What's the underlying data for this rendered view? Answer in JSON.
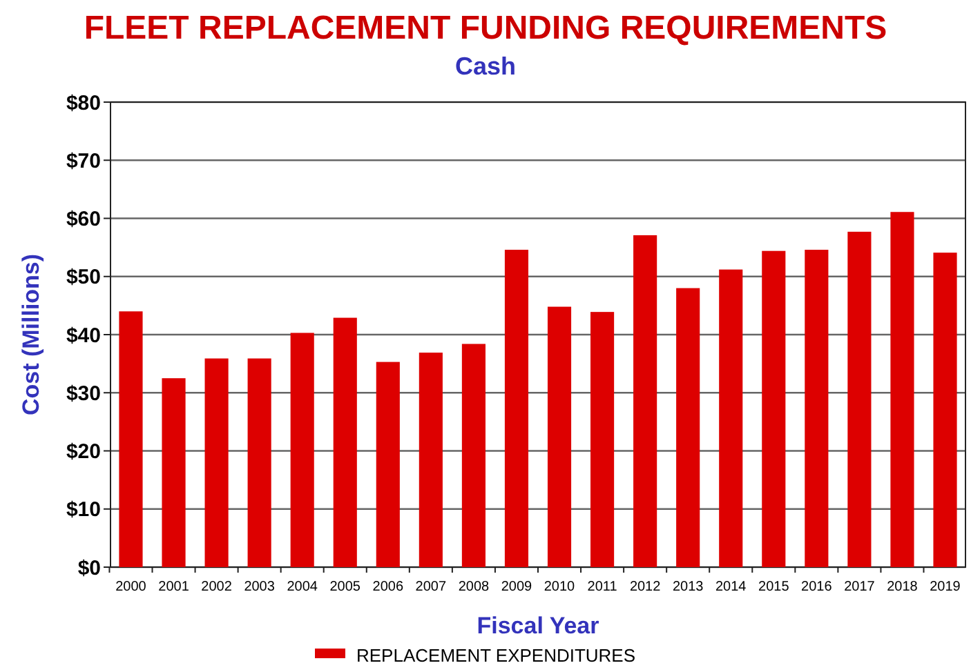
{
  "chart_data": {
    "type": "bar",
    "title": "FLEET REPLACEMENT FUNDING REQUIREMENTS",
    "subtitle": "Cash",
    "xlabel": "Fiscal Year",
    "ylabel": "Cost (Millions)",
    "categories": [
      "2000",
      "2001",
      "2002",
      "2003",
      "2004",
      "2005",
      "2006",
      "2007",
      "2008",
      "2009",
      "2010",
      "2011",
      "2012",
      "2013",
      "2014",
      "2015",
      "2016",
      "2017",
      "2018",
      "2019"
    ],
    "series": [
      {
        "name": "REPLACEMENT EXPENDITURES",
        "color": "#dd0000",
        "values": [
          44.0,
          32.5,
          35.9,
          35.9,
          40.3,
          42.9,
          35.3,
          36.9,
          38.4,
          54.6,
          44.8,
          43.9,
          57.1,
          48.0,
          51.2,
          54.4,
          54.6,
          57.7,
          61.1,
          54.1
        ]
      }
    ],
    "ylim": [
      0,
      80
    ],
    "yticks": [
      {
        "value": 0,
        "label": "$0"
      },
      {
        "value": 10,
        "label": "$10"
      },
      {
        "value": 20,
        "label": "$20"
      },
      {
        "value": 30,
        "label": "$30"
      },
      {
        "value": 40,
        "label": "$40"
      },
      {
        "value": 50,
        "label": "$50"
      },
      {
        "value": 60,
        "label": "$60"
      },
      {
        "value": 70,
        "label": "$70"
      },
      {
        "value": 80,
        "label": "$80"
      }
    ],
    "grid": "y",
    "legend": "bottom"
  }
}
